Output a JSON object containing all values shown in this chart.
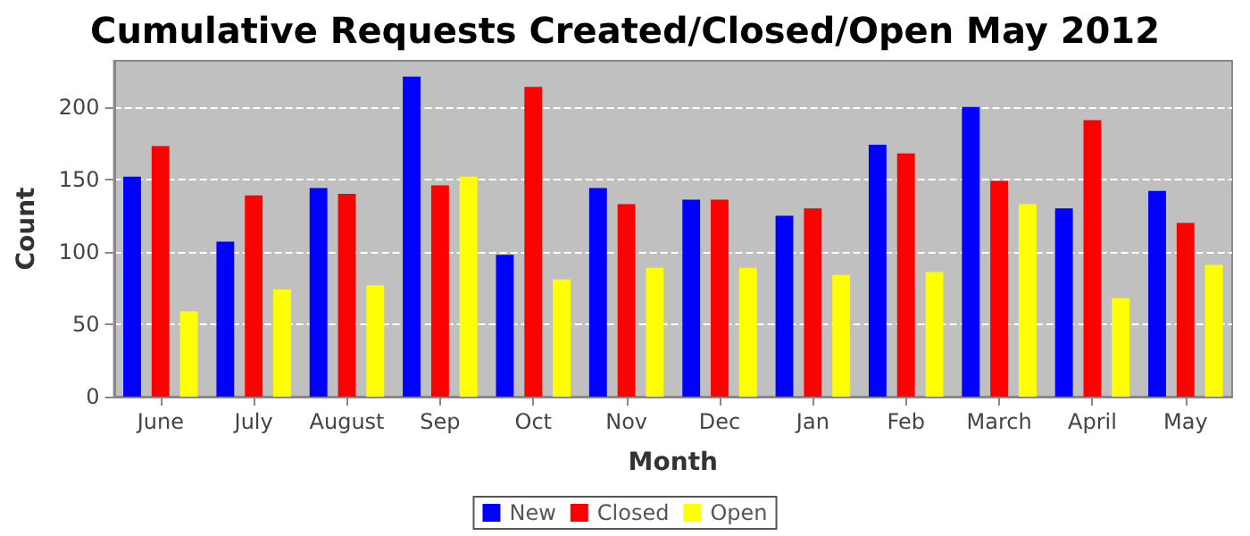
{
  "chart_data": {
    "type": "bar",
    "title": "Cumulative Requests Created/Closed/Open May 2012",
    "xlabel": "Month",
    "ylabel": "Count",
    "categories": [
      "June",
      "July",
      "August",
      "Sep",
      "Oct",
      "Nov",
      "Dec",
      "Jan",
      "Feb",
      "March",
      "April",
      "May"
    ],
    "series": [
      {
        "name": "New",
        "color": "#0000ff",
        "values": [
          152,
          107,
          144,
          221,
          98,
          144,
          136,
          125,
          174,
          200,
          130,
          142
        ]
      },
      {
        "name": "Closed",
        "color": "#ff0000",
        "values": [
          173,
          139,
          140,
          146,
          214,
          133,
          136,
          130,
          168,
          149,
          191,
          120
        ]
      },
      {
        "name": "Open",
        "color": "#ffff00",
        "values": [
          59,
          74,
          77,
          152,
          81,
          89,
          89,
          84,
          86,
          133,
          68,
          91
        ]
      }
    ],
    "ylim": [
      0,
      232
    ],
    "yticks": [
      0,
      50,
      100,
      150,
      200
    ],
    "grid": "y",
    "legend": "bottom"
  }
}
